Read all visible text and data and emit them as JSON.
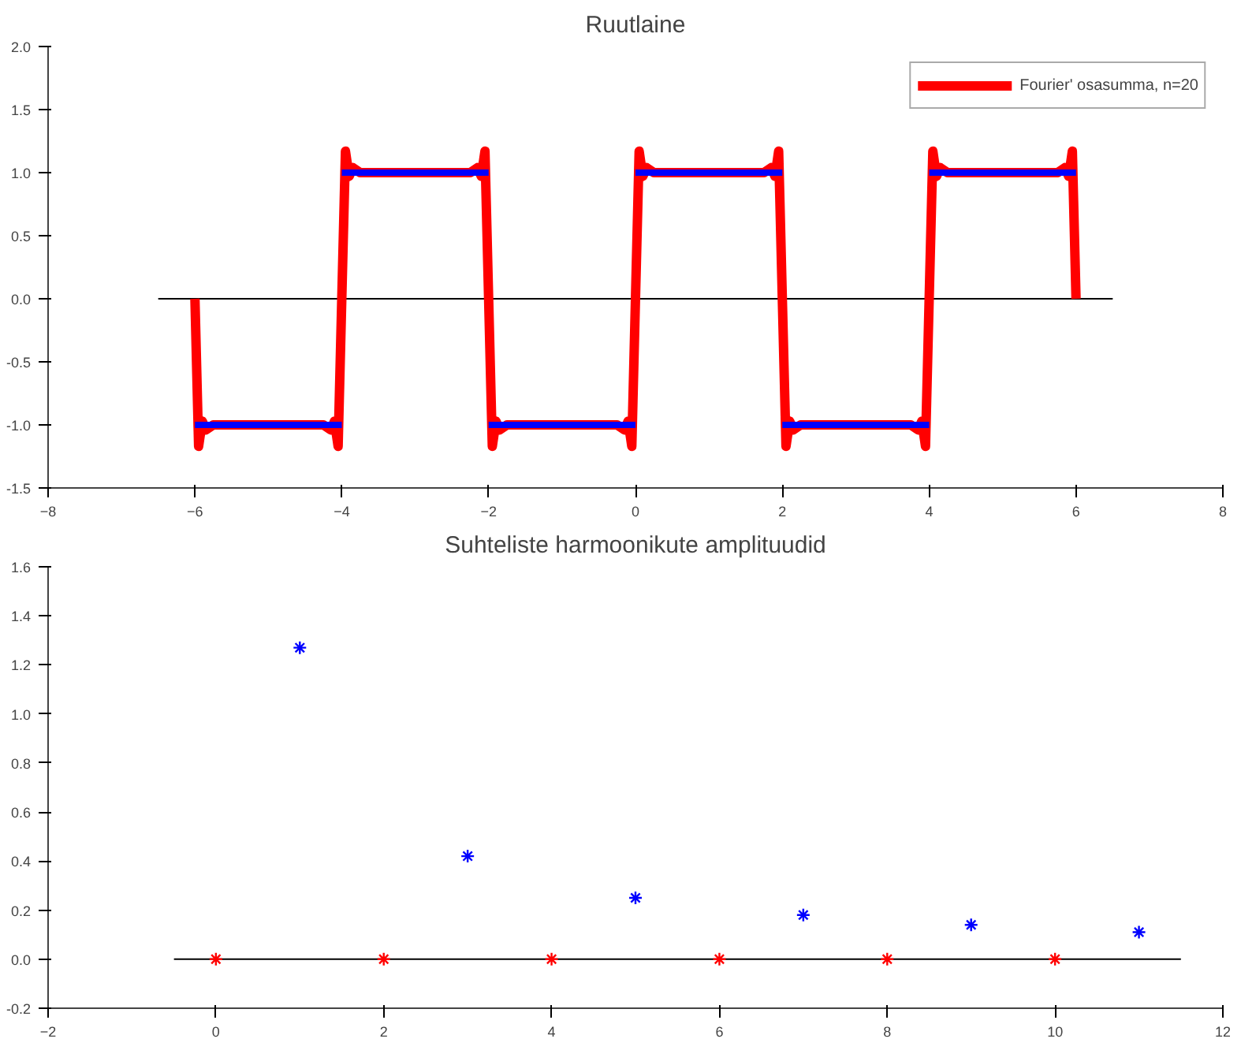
{
  "chart_data": [
    {
      "type": "line",
      "title": "Ruutlaine",
      "xlim": [
        -8,
        8
      ],
      "ylim": [
        -1.5,
        2.0
      ],
      "xticks": [
        -8,
        -6,
        -4,
        -2,
        0,
        2,
        4,
        6,
        8
      ],
      "yticks": [
        {
          "value": -1.5,
          "label": "-1.5"
        },
        {
          "value": -1.0,
          "label": "-1.0"
        },
        {
          "value": -0.5,
          "label": "-0.5"
        },
        {
          "value": 0,
          "label": "0.0"
        },
        {
          "value": 0.5,
          "label": "0.5"
        },
        {
          "value": 1.0,
          "label": "1.0"
        },
        {
          "value": 1.5,
          "label": "1.5"
        },
        {
          "value": 2.0,
          "label": "2.0"
        }
      ],
      "grid": false,
      "legend": "top right",
      "series": [
        {
          "color": "#000000",
          "x": [
            -6.5,
            6.5
          ],
          "values": [
            0,
            0
          ]
        },
        {
          "name": "Fourier' osasumma, n=20",
          "color": "#ff0000",
          "x": [
            -6,
            -5.95,
            -5.9,
            -5.85,
            -5.75,
            -4.25,
            -4.15,
            -4.1,
            -4.05,
            -4,
            -3.95,
            -3.9,
            -3.85,
            -3.75,
            -2.25,
            -2.15,
            -2.1,
            -2.05,
            -2,
            -1.95,
            -1.9,
            -1.85,
            -1.75,
            -0.25,
            -0.15,
            -0.1,
            -0.05,
            0,
            0.05,
            0.1,
            0.15,
            0.25,
            1.75,
            1.85,
            1.9,
            1.95,
            2,
            2.05,
            2.1,
            2.15,
            2.25,
            3.75,
            3.85,
            3.9,
            3.95,
            4,
            4.05,
            4.1,
            4.15,
            4.25,
            5.75,
            5.85,
            5.9,
            5.95,
            6
          ],
          "values": [
            0,
            -1.17,
            -0.97,
            -1.04,
            -1,
            -1,
            -1.04,
            -0.97,
            -1.17,
            0,
            1.17,
            0.97,
            1.04,
            1,
            1,
            1.04,
            0.97,
            1.17,
            0,
            -1.17,
            -0.97,
            -1.04,
            -1,
            -1,
            -1.04,
            -0.97,
            -1.17,
            0,
            1.17,
            0.97,
            1.04,
            1,
            1,
            1.04,
            0.97,
            1.17,
            0,
            -1.17,
            -0.97,
            -1.04,
            -1,
            -1,
            -1.04,
            -0.97,
            -1.17,
            0,
            1.17,
            0.97,
            1.04,
            1,
            1,
            1.04,
            0.97,
            1.17,
            0
          ]
        },
        {
          "color": "#0000ff",
          "x": [
            -6,
            -4
          ],
          "values": [
            -1,
            -1
          ]
        },
        {
          "color": "#0000ff",
          "x": [
            -4,
            -2
          ],
          "values": [
            1,
            1
          ]
        },
        {
          "color": "#0000ff",
          "x": [
            -2,
            0
          ],
          "values": [
            -1,
            -1
          ]
        },
        {
          "color": "#0000ff",
          "x": [
            0,
            2
          ],
          "values": [
            1,
            1
          ]
        },
        {
          "color": "#0000ff",
          "x": [
            2,
            4
          ],
          "values": [
            -1,
            -1
          ]
        },
        {
          "color": "#0000ff",
          "x": [
            4,
            6
          ],
          "values": [
            1,
            1
          ]
        }
      ]
    },
    {
      "type": "scatter",
      "title": "Suhteliste harmoonikute amplituudid",
      "xlim": [
        -2,
        12
      ],
      "ylim": [
        -0.2,
        1.6
      ],
      "xticks": [
        -2,
        0,
        2,
        4,
        6,
        8,
        10,
        12
      ],
      "yticks": [
        {
          "value": -0.2,
          "label": "-0.2"
        },
        {
          "value": 0,
          "label": "0.0"
        },
        {
          "value": 0.2,
          "label": "0.2"
        },
        {
          "value": 0.4,
          "label": "0.4"
        },
        {
          "value": 0.6,
          "label": "0.6"
        },
        {
          "value": 0.8,
          "label": "0.8"
        },
        {
          "value": 1.0,
          "label": "1.0"
        },
        {
          "value": 1.2,
          "label": "1.2"
        },
        {
          "value": 1.4,
          "label": "1.4"
        },
        {
          "value": 1.6,
          "label": "1.6"
        }
      ],
      "grid": false,
      "legend": false,
      "series": [
        {
          "type": "line",
          "color": "#000000",
          "x": [
            -0.5,
            11.5
          ],
          "values": [
            0,
            0
          ]
        },
        {
          "color": "#0000ff",
          "marker": "cross",
          "x": [
            1,
            3,
            5,
            7,
            9,
            11
          ],
          "values": [
            1.27,
            0.42,
            0.25,
            0.18,
            0.14,
            0.11
          ]
        },
        {
          "color": "#ff0000",
          "marker": "cross",
          "x": [
            0,
            2,
            4,
            6,
            8,
            10
          ],
          "values": [
            0,
            0,
            0,
            0,
            0,
            0
          ]
        }
      ]
    }
  ]
}
